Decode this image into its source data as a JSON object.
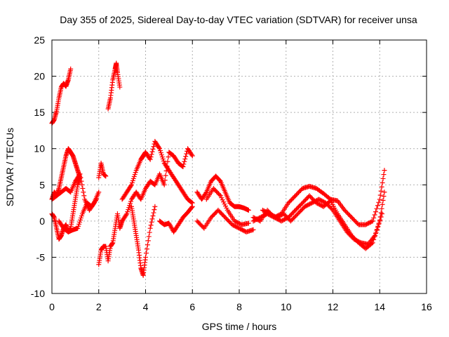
{
  "chart_data": {
    "type": "scatter",
    "title": "Day 355 of 2025, Sidereal Day-to-day VTEC variation (SDTVAR) for receiver unsa",
    "xlabel": "GPS time / hours",
    "ylabel": "SDTVAR / TECUs",
    "xlim": [
      0,
      16
    ],
    "ylim": [
      -10,
      25
    ],
    "xticks": [
      0,
      2,
      4,
      6,
      8,
      10,
      12,
      14,
      16
    ],
    "yticks": [
      -10,
      -5,
      0,
      5,
      10,
      15,
      20,
      25
    ],
    "xtick_labels": [
      "0",
      "2",
      "4",
      "6",
      "8",
      "10",
      "12",
      "14",
      "16"
    ],
    "ytick_labels": [
      "-10",
      "-5",
      "0",
      "5",
      "10",
      "15",
      "20",
      "25"
    ],
    "grid": true,
    "marker": "+",
    "color": "#ff0000",
    "series": [
      {
        "name": "s1",
        "x": [
          0.0,
          0.1,
          0.2,
          0.3,
          0.4,
          0.5,
          0.6,
          0.7,
          0.8
        ],
        "y": [
          13.5,
          14.0,
          15.2,
          17.0,
          18.5,
          19.0,
          18.6,
          19.5,
          21.0
        ]
      },
      {
        "name": "s2",
        "x": [
          2.4,
          2.5,
          2.6,
          2.7,
          2.75,
          2.8,
          2.9
        ],
        "y": [
          15.5,
          17.0,
          19.5,
          21.0,
          21.8,
          20.5,
          18.5
        ]
      },
      {
        "name": "s3",
        "x": [
          0.0,
          0.1,
          0.2,
          0.3,
          0.4,
          0.5,
          0.6,
          0.7,
          0.8,
          0.9,
          1.0,
          1.1,
          1.2
        ],
        "y": [
          3.0,
          4.0,
          3.5,
          4.5,
          6.0,
          7.5,
          9.0,
          10.0,
          9.5,
          9.0,
          8.0,
          7.0,
          6.0
        ]
      },
      {
        "name": "s4",
        "x": [
          0.0,
          0.1,
          0.2,
          0.3,
          0.4,
          0.5,
          0.6,
          0.7,
          0.8,
          0.9,
          1.0,
          1.1,
          1.2
        ],
        "y": [
          1.0,
          0.5,
          -1.0,
          -2.5,
          -2.0,
          -1.0,
          -0.5,
          -1.5,
          -1.0,
          1.0,
          3.0,
          5.0,
          6.0
        ]
      },
      {
        "name": "s5",
        "x": [
          0.0,
          0.2,
          0.4,
          0.6,
          0.8,
          1.0,
          1.2,
          1.4,
          1.6,
          1.8,
          2.0
        ],
        "y": [
          3.0,
          3.5,
          4.0,
          4.5,
          4.0,
          5.5,
          6.5,
          3.0,
          1.5,
          2.5,
          4.0
        ]
      },
      {
        "name": "s6",
        "x": [
          0.3,
          0.5,
          0.7,
          0.9,
          1.1,
          1.3,
          1.5,
          1.7,
          1.9
        ],
        "y": [
          0.0,
          -1.0,
          -1.5,
          -1.2,
          -1.0,
          1.0,
          2.5,
          2.0,
          3.0
        ]
      },
      {
        "name": "s7",
        "x": [
          2.0,
          2.1,
          2.2,
          2.3,
          2.4,
          2.5,
          2.6,
          2.7,
          2.8,
          2.9,
          3.0
        ],
        "y": [
          -6.0,
          -4.0,
          -3.5,
          -3.5,
          -5.5,
          -3.5,
          -3.0,
          -1.0,
          1.0,
          -1.0,
          0.0
        ]
      },
      {
        "name": "s8",
        "x": [
          2.0,
          2.1,
          2.2,
          2.3
        ],
        "y": [
          6.0,
          8.0,
          6.5,
          6.2
        ]
      },
      {
        "name": "s9",
        "x": [
          3.0,
          3.2,
          3.4,
          3.6,
          3.8,
          3.9,
          4.0,
          4.2,
          4.4,
          4.6,
          4.8,
          5.0,
          5.2,
          5.4,
          5.6,
          5.8,
          6.0
        ],
        "y": [
          3.0,
          4.0,
          5.0,
          7.0,
          8.5,
          9.0,
          9.5,
          8.5,
          11.0,
          10.0,
          8.0,
          7.0,
          6.0,
          5.0,
          4.0,
          3.0,
          2.5
        ]
      },
      {
        "name": "s10",
        "x": [
          3.4,
          3.5,
          3.6,
          3.7,
          3.8,
          3.9,
          4.0,
          4.2,
          4.4
        ],
        "y": [
          2.0,
          0.0,
          -2.0,
          -4.0,
          -6.5,
          -7.5,
          -5.0,
          -1.0,
          2.0
        ]
      },
      {
        "name": "s11",
        "x": [
          3.0,
          3.2,
          3.4,
          3.6,
          3.8,
          4.0,
          4.2,
          4.4,
          4.6,
          4.8,
          5.0,
          5.2,
          5.4,
          5.6,
          5.8,
          6.0
        ],
        "y": [
          0.0,
          1.0,
          3.0,
          4.0,
          3.0,
          4.5,
          5.5,
          5.0,
          6.5,
          5.0,
          9.5,
          9.0,
          8.0,
          7.5,
          10.0,
          9.0
        ]
      },
      {
        "name": "s12",
        "x": [
          4.6,
          4.8,
          5.0,
          5.2,
          5.4,
          5.6,
          5.8,
          6.0
        ],
        "y": [
          0.0,
          -0.5,
          -0.3,
          -1.5,
          -0.5,
          0.5,
          1.2,
          2.0
        ]
      },
      {
        "name": "s13",
        "x": [
          6.2,
          6.4,
          6.6,
          6.8,
          7.0,
          7.2,
          7.4,
          7.6,
          7.8,
          8.0,
          8.2,
          8.4
        ],
        "y": [
          4.0,
          3.0,
          4.0,
          5.5,
          6.2,
          5.5,
          4.0,
          2.5,
          2.0,
          2.0,
          1.8,
          1.5
        ]
      },
      {
        "name": "s14",
        "x": [
          6.2,
          6.5,
          6.8,
          7.1,
          7.4,
          7.7,
          8.0,
          8.3,
          8.6
        ],
        "y": [
          0.0,
          -1.0,
          0.5,
          1.5,
          0.5,
          -0.5,
          -1.0,
          -1.5,
          -1.2
        ]
      },
      {
        "name": "s15",
        "x": [
          6.6,
          6.9,
          7.2,
          7.5,
          7.8,
          8.1,
          8.4
        ],
        "y": [
          3.0,
          4.5,
          3.5,
          1.5,
          0.0,
          -0.5,
          -0.3
        ]
      },
      {
        "name": "s16",
        "x": [
          8.6,
          8.9,
          9.2,
          9.5,
          9.8,
          10.1,
          10.4,
          10.7,
          11.0,
          11.3,
          11.6,
          11.9,
          12.2,
          12.5,
          12.8,
          13.1,
          13.4,
          13.7,
          14.0,
          14.2
        ],
        "y": [
          0.0,
          0.5,
          1.0,
          0.5,
          1.0,
          2.5,
          3.5,
          4.5,
          4.8,
          4.5,
          3.8,
          3.0,
          2.8,
          1.5,
          0.5,
          -0.5,
          -0.5,
          0.0,
          3.0,
          7.0
        ]
      },
      {
        "name": "s17",
        "x": [
          8.6,
          8.9,
          9.2,
          9.5,
          9.8,
          10.1,
          10.4,
          10.7,
          11.0,
          11.3,
          11.6,
          11.9,
          12.2,
          12.5,
          12.8,
          13.1,
          13.4,
          13.7,
          14.0,
          14.2
        ],
        "y": [
          0.5,
          0.0,
          1.5,
          0.5,
          0.0,
          0.5,
          1.5,
          2.5,
          3.5,
          2.5,
          2.0,
          2.8,
          1.0,
          -0.5,
          -2.0,
          -3.0,
          -3.8,
          -3.0,
          0.0,
          4.0
        ]
      },
      {
        "name": "s18",
        "x": [
          9.0,
          9.3,
          9.6,
          9.9,
          10.2,
          10.5,
          10.8,
          11.1,
          11.4,
          11.7,
          12.0,
          12.3,
          12.6,
          12.9,
          13.2,
          13.5,
          13.8,
          14.1
        ],
        "y": [
          1.5,
          1.0,
          0.5,
          1.0,
          0.0,
          1.0,
          2.0,
          2.5,
          3.0,
          2.5,
          1.5,
          0.0,
          -1.5,
          -2.5,
          -3.0,
          -3.2,
          -2.0,
          1.0
        ]
      }
    ]
  }
}
